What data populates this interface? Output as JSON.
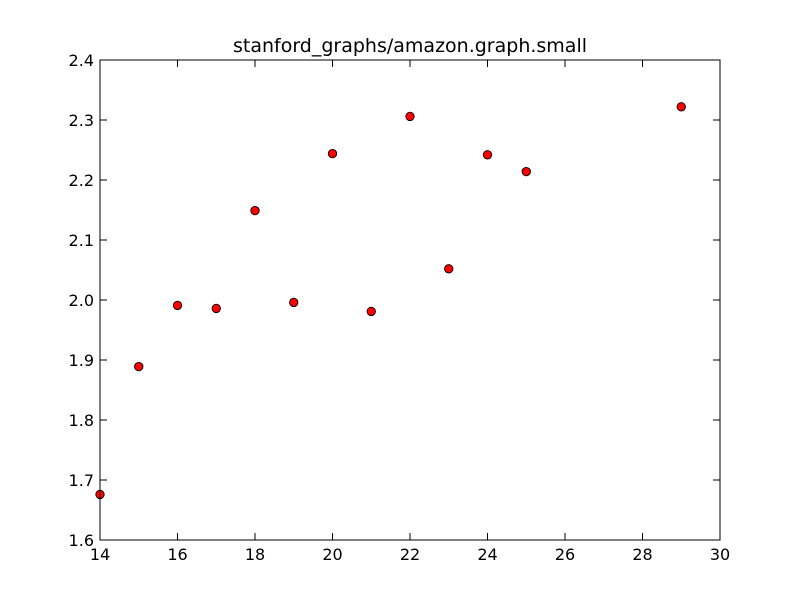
{
  "chart_data": {
    "type": "scatter",
    "title": "stanford_graphs/amazon.graph.small",
    "xlabel": "",
    "ylabel": "",
    "xlim": [
      14,
      30
    ],
    "ylim": [
      1.6,
      2.4
    ],
    "x_ticks": [
      "14",
      "16",
      "18",
      "20",
      "22",
      "24",
      "26",
      "28",
      "30"
    ],
    "y_ticks": [
      "1.6",
      "1.7",
      "1.8",
      "1.9",
      "2.0",
      "2.1",
      "2.2",
      "2.3",
      "2.4"
    ],
    "grid": false,
    "marker_color": "#ff0000",
    "marker_edge_color": "#000000",
    "points": [
      {
        "x": 14,
        "y": 1.676
      },
      {
        "x": 15,
        "y": 1.889
      },
      {
        "x": 16,
        "y": 1.991
      },
      {
        "x": 17,
        "y": 1.986
      },
      {
        "x": 18,
        "y": 2.149
      },
      {
        "x": 19,
        "y": 1.996
      },
      {
        "x": 20,
        "y": 2.244
      },
      {
        "x": 21,
        "y": 1.981
      },
      {
        "x": 22,
        "y": 2.306
      },
      {
        "x": 23,
        "y": 2.052
      },
      {
        "x": 24,
        "y": 2.242
      },
      {
        "x": 25,
        "y": 2.214
      },
      {
        "x": 29,
        "y": 2.322
      }
    ]
  }
}
